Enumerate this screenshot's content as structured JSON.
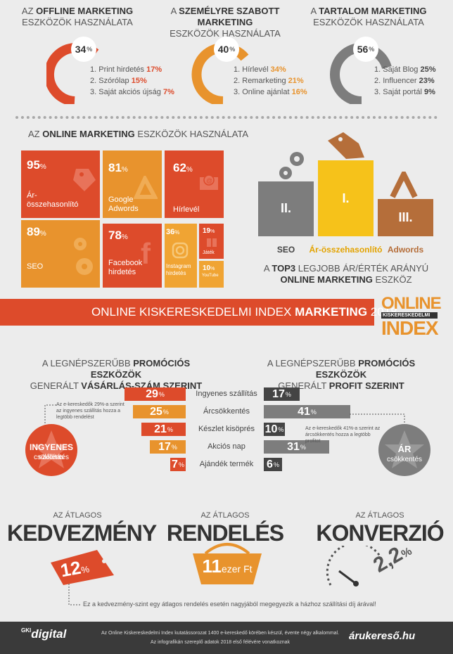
{
  "offline": {
    "prefix": "AZ",
    "bold": "OFFLINE MARKETING",
    "line2": "ESZKÖZÖK HASZNÁLATA",
    "pct": "34",
    "pct_sign": "%",
    "items": [
      {
        "n": "1.",
        "label": "Print hirdetés",
        "value": "17%"
      },
      {
        "n": "2.",
        "label": "Szórólap",
        "value": "15%"
      },
      {
        "n": "3.",
        "label": "Saját akciós újság",
        "value": "7%"
      }
    ]
  },
  "personal": {
    "prefix": "A",
    "bold": "SZEMÉLYRE SZABOTT MARKETING",
    "line2": "ESZKÖZÖK HASZNÁLATA",
    "pct": "40",
    "pct_sign": "%",
    "items": [
      {
        "n": "1.",
        "label": "Hírlevél",
        "value": "34%"
      },
      {
        "n": "2.",
        "label": "Remarketing",
        "value": "21%"
      },
      {
        "n": "3.",
        "label": "Online ajánlat",
        "value": "16%"
      }
    ]
  },
  "content": {
    "prefix": "A",
    "bold": "TARTALOM MARKETING",
    "line2": "ESZKÖZÖK HASZNÁLATA",
    "pct": "56",
    "pct_sign": "%",
    "items": [
      {
        "n": "1.",
        "label": "Saját Blog",
        "value": "25%"
      },
      {
        "n": "2.",
        "label": "Influencer",
        "value": "23%"
      },
      {
        "n": "3.",
        "label": "Saját portál",
        "value": "9%"
      }
    ]
  },
  "online": {
    "prefix": "AZ",
    "bold": "ONLINE MARKETING",
    "suffix": "ESZKÖZÖK HASZNÁLATA",
    "tiles": [
      {
        "value": "95",
        "label": "Ár-összehasonlító"
      },
      {
        "value": "81",
        "label": "Google Adwords"
      },
      {
        "value": "62",
        "label": "Hírlevél"
      },
      {
        "value": "89",
        "label": "SEO"
      },
      {
        "value": "78",
        "label": "Facebook hirdetés"
      },
      {
        "value": "36",
        "label": "Instagram hirdetés"
      },
      {
        "value": "19",
        "label": "Játék"
      },
      {
        "value": "10",
        "label": "YouTube"
      }
    ],
    "pct_sign": "%",
    "podium": [
      {
        "rank": "II.",
        "label": "SEO"
      },
      {
        "rank": "I.",
        "label": "Ár-összehasonlító"
      },
      {
        "rank": "III.",
        "label": "Adwords"
      }
    ],
    "top3_line1_pre": "A",
    "top3_line1_bold": "TOP3",
    "top3_line1_post": "LEGJOBB ÁR/ÉRTÉK ARÁNYÚ",
    "top3_line2_bold": "ONLINE MARKETING",
    "top3_line2_post": "ESZKÖZ"
  },
  "banner": {
    "text_pre": "ONLINE KISKERESKEDELMI INDEX",
    "text_bold": "MARKETING",
    "text_post": "2018",
    "logo_top": "ONLINE",
    "logo_mid": "KISKERESKEDELMI",
    "logo_bot": "INDEX"
  },
  "promo": {
    "left_line1_pre": "A LEGNÉPSZERŰBB",
    "left_line1_bold": "PROMÓCIÓS ESZKÖZÖK",
    "left_line2_pre": "GENERÁLT",
    "left_line2_bold": "VÁSÁRLÁS-SZÁM SZERINT",
    "right_line1_pre": "A LEGNÉPSZERŰBB",
    "right_line1_bold": "PROMÓCIÓS ESZKÖZÖK",
    "right_line2_pre": "GENERÁLT",
    "right_line2_bold": "PROFIT SZERINT",
    "rows": [
      {
        "label": "Ingyenes szállítás",
        "left": "29",
        "right": "17"
      },
      {
        "label": "Árcsökkentés",
        "left": "25",
        "right": "41"
      },
      {
        "label": "Készlet kisöprés",
        "left": "21",
        "right": "10"
      },
      {
        "label": "Akciós nap",
        "left": "17",
        "right": "31"
      },
      {
        "label": "Ajándék termék",
        "left": "7",
        "right": "6"
      }
    ],
    "pct_sign": "%",
    "left_note": "Az e-kereskedők 29%-a szerint az ingyenes szállítás hozza a legtöbb rendelést",
    "right_note": "Az e-kereskedők 41%-a szerint az árcsökkentés hozza a legtöbb profitot",
    "left_badge_1": "INGYENES",
    "left_badge_2": "szállítás",
    "right_badge_1": "ÁR",
    "right_badge_2": "csökkentés"
  },
  "averages": {
    "discount_pre": "AZ ÁTLAGOS",
    "discount_title": "KEDVEZMÉNY",
    "discount_value": "12",
    "discount_unit": "%",
    "order_pre": "AZ ÁTLAGOS",
    "order_title": "RENDELÉS",
    "order_value": "11",
    "order_unit": "ezer Ft",
    "conversion_pre": "AZ ÁTLAGOS",
    "conversion_title": "KONVERZIÓ",
    "conversion_value": "2,2",
    "conversion_unit": "%",
    "footnote": "Ez a kedvezmény-szint egy átlagos rendelés esetén nagyjából megegyezik a házhoz szállítási díj árával!"
  },
  "footer": {
    "logo_left_small": "GKI",
    "logo_left": "digital",
    "line1": "Az Online Kiskereskedelmi Index kutatássorozat 1400 e-kereskedő körében készül, évente négy alkalommal.",
    "line2": "Az infografikán szereplő adatok 2018 első félévére vonatkoznak",
    "logo_right": "árukereső.hu"
  },
  "colors": {
    "red": "#dd4b2b",
    "orange": "#e8932d",
    "amber": "#f0a433",
    "yellow": "#f6c21a",
    "brown": "#b56e3a",
    "grey": "#7d7d7d",
    "darkgrey": "#3a3a3a",
    "bg": "#ececec"
  }
}
